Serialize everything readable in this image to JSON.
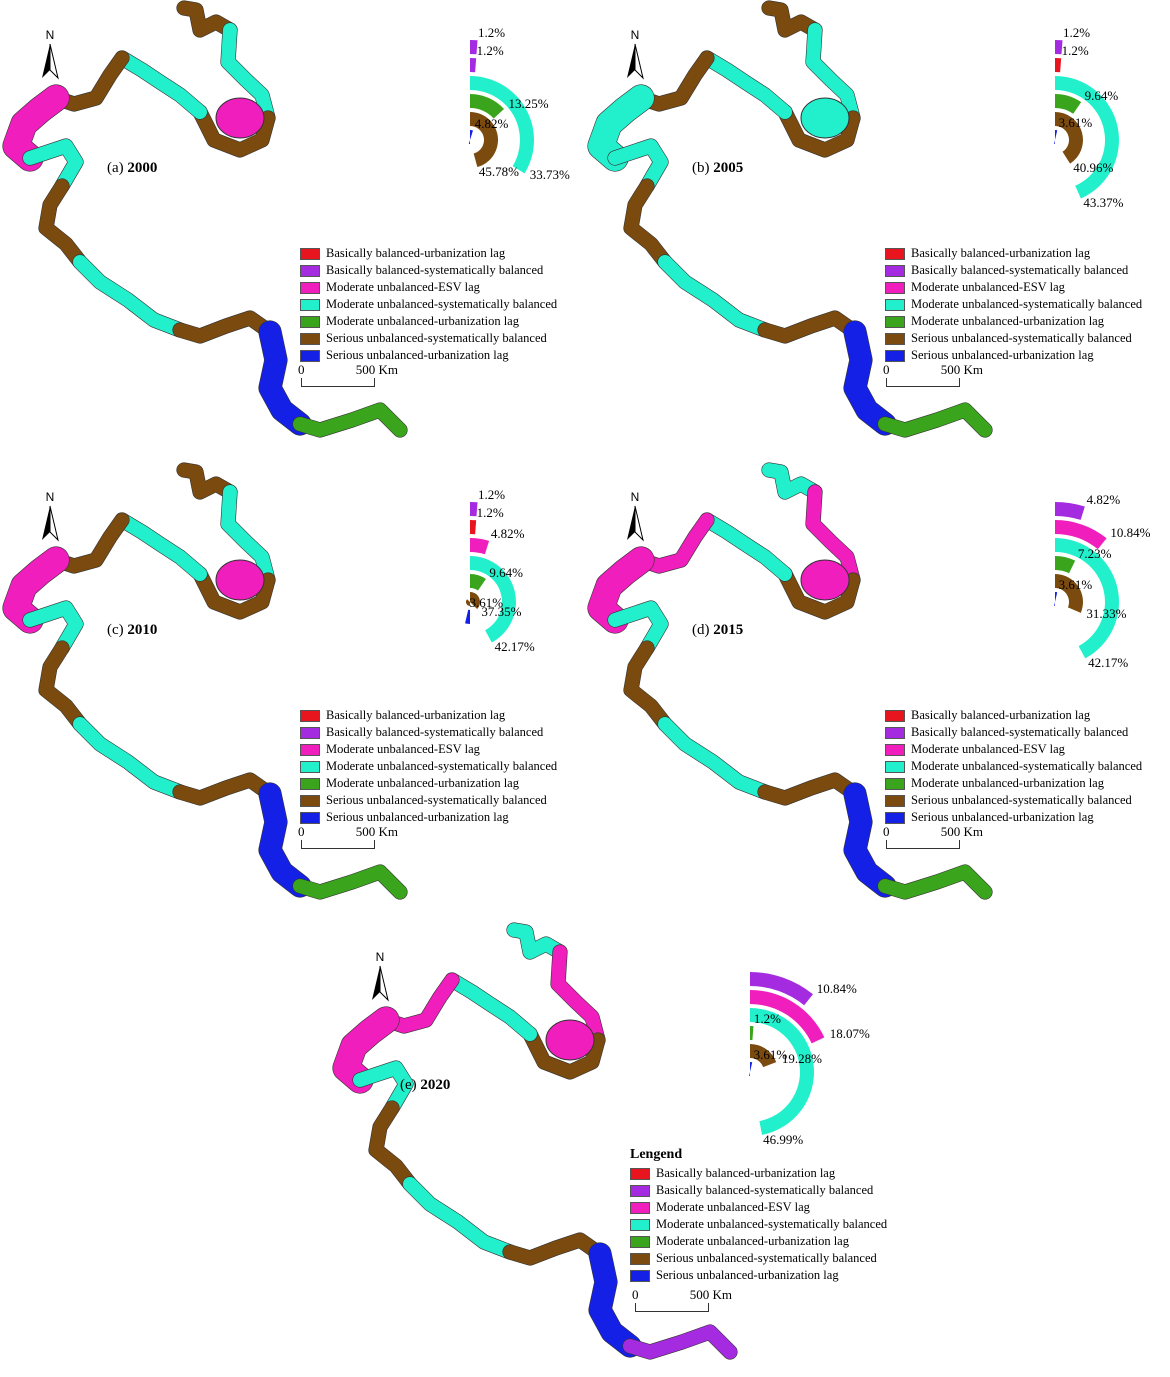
{
  "colors": {
    "Basically balanced-urbanization lag": "#e8141e",
    "Basically balanced-systematically balanced": "#a52be0",
    "Moderate unbalanced-ESV lag": "#f01ebc",
    "Moderate unbalanced-systematically balanced": "#22f0cc",
    "Moderate unbalanced-urbanization lag": "#3aa51c",
    "Serious unbalanced-systematically balanced": "#7a4a0e",
    "Serious unbalanced-urbanization lag": "#1420e6"
  },
  "legend_categories": [
    "Basically balanced-urbanization lag",
    "Basically balanced-systematically balanced",
    "Moderate unbalanced-ESV lag",
    "Moderate unbalanced-systematically balanced",
    "Moderate unbalanced-urbanization lag",
    "Serious unbalanced-systematically balanced",
    "Serious unbalanced-urbanization lag"
  ],
  "legend_title": "Lengend",
  "north_label": "N",
  "scale": {
    "start": "0",
    "end": "500 Km"
  },
  "panels": [
    {
      "label": "(a)",
      "year": "2000",
      "rings": [
        {
          "category": "Basically balanced-systematically balanced",
          "pct_text": "1.2%",
          "value": 1.2
        },
        {
          "category": "Basically balanced-systematically balanced",
          "pct_text": "1.2%",
          "value": 1.2
        },
        {
          "category": "Moderate unbalanced-systematically balanced",
          "pct_text": "33.73%",
          "value": 33.73
        },
        {
          "category": "Moderate unbalanced-urbanization lag",
          "pct_text": "13.25%",
          "value": 13.25
        },
        {
          "category": "Serious unbalanced-systematically balanced",
          "pct_text": "45.78%",
          "value": 45.78
        },
        {
          "category": "Serious unbalanced-urbanization lag",
          "pct_text": "4.82%",
          "value": 4.82
        }
      ]
    },
    {
      "label": "(b)",
      "year": "2005",
      "rings": [
        {
          "category": "Basically balanced-systematically balanced",
          "pct_text": "1.2%",
          "value": 1.2
        },
        {
          "category": "Basically balanced-urbanization lag",
          "pct_text": "1.2%",
          "value": 1.2
        },
        {
          "category": "Moderate unbalanced-systematically balanced",
          "pct_text": "43.37%",
          "value": 43.37
        },
        {
          "category": "Moderate unbalanced-urbanization lag",
          "pct_text": "9.64%",
          "value": 9.64
        },
        {
          "category": "Serious unbalanced-systematically balanced",
          "pct_text": "40.96%",
          "value": 40.96
        },
        {
          "category": "Serious unbalanced-urbanization lag",
          "pct_text": "3.61%",
          "value": 3.61
        }
      ]
    },
    {
      "label": "(c)",
      "year": "2010",
      "rings": [
        {
          "category": "Basically balanced-systematically balanced",
          "pct_text": "1.2%",
          "value": 1.2
        },
        {
          "category": "Basically balanced-urbanization lag",
          "pct_text": "1.2%",
          "value": 1.2
        },
        {
          "category": "Moderate unbalanced-ESV lag",
          "pct_text": "4.82%",
          "value": 4.82
        },
        {
          "category": "Moderate unbalanced-systematically balanced",
          "pct_text": "42.17%",
          "value": 42.17
        },
        {
          "category": "Moderate unbalanced-urbanization lag",
          "pct_text": "9.64%",
          "value": 9.64
        },
        {
          "category": "Serious unbalanced-systematically balanced",
          "pct_text": "37.35%",
          "value": 37.35
        },
        {
          "category": "Serious unbalanced-urbanization lag",
          "pct_text": "3.61%",
          "value": 3.61
        }
      ]
    },
    {
      "label": "(d)",
      "year": "2015",
      "rings": [
        {
          "category": "Basically balanced-systematically balanced",
          "pct_text": "4.82%",
          "value": 4.82
        },
        {
          "category": "Moderate unbalanced-ESV lag",
          "pct_text": "10.84%",
          "value": 10.84
        },
        {
          "category": "Moderate unbalanced-systematically balanced",
          "pct_text": "42.17%",
          "value": 42.17
        },
        {
          "category": "Moderate unbalanced-urbanization lag",
          "pct_text": "7.23%",
          "value": 7.23
        },
        {
          "category": "Serious unbalanced-systematically balanced",
          "pct_text": "31.33%",
          "value": 31.33
        },
        {
          "category": "Serious unbalanced-urbanization lag",
          "pct_text": "3.61%",
          "value": 3.61
        }
      ]
    },
    {
      "label": "(e)",
      "year": "2020",
      "rings": [
        {
          "category": "Basically balanced-systematically balanced",
          "pct_text": "10.84%",
          "value": 10.84
        },
        {
          "category": "Moderate unbalanced-ESV lag",
          "pct_text": "18.07%",
          "value": 18.07
        },
        {
          "category": "Moderate unbalanced-systematically balanced",
          "pct_text": "46.99%",
          "value": 46.99
        },
        {
          "category": "Moderate unbalanced-urbanization lag",
          "pct_text": "1.2%",
          "value": 1.2
        },
        {
          "category": "Serious unbalanced-systematically balanced",
          "pct_text": "19.28%",
          "value": 19.28
        },
        {
          "category": "Serious unbalanced-urbanization lag",
          "pct_text": "3.61%",
          "value": 3.61
        }
      ]
    }
  ]
}
